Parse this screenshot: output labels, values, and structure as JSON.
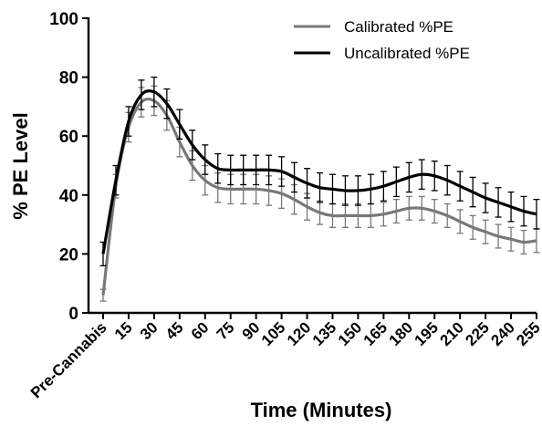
{
  "chart_data": {
    "type": "line",
    "title": "",
    "xlabel": "Time (Minutes)",
    "ylabel": "% PE Level",
    "ylim": [
      0,
      100
    ],
    "yticks": [
      0,
      20,
      40,
      60,
      80,
      100
    ],
    "categories": [
      "Pre-Cannabis",
      "15",
      "30",
      "45",
      "60",
      "75",
      "90",
      "105",
      "120",
      "135",
      "150",
      "165",
      "180",
      "195",
      "210",
      "225",
      "240",
      "255"
    ],
    "x": [
      0,
      7.5,
      15,
      22.5,
      30,
      37.5,
      45,
      52.5,
      60,
      67.5,
      75,
      82.5,
      90,
      97.5,
      105,
      112.5,
      120,
      127.5,
      135,
      142.5,
      150,
      157.5,
      165,
      172.5,
      180,
      187.5,
      195,
      202.5,
      210,
      217.5,
      225,
      232.5,
      240,
      247.5,
      255
    ],
    "grid": false,
    "legend_position": "top-right",
    "series": [
      {
        "name": "Uncalibrated %PE",
        "color": "#000000",
        "values": [
          20,
          45,
          65,
          74,
          75,
          71,
          64,
          57,
          52,
          49,
          48.5,
          48.5,
          48.5,
          48.5,
          48,
          46,
          44,
          42.5,
          42,
          41.5,
          41.5,
          42,
          43,
          44.5,
          46,
          47,
          46.5,
          45,
          43,
          41,
          39,
          37.5,
          36,
          34.5,
          33.5
        ],
        "error": [
          4,
          5,
          5,
          5,
          5,
          5,
          5,
          5,
          5,
          5,
          5,
          5,
          5,
          5,
          5,
          5,
          5,
          5,
          5,
          5,
          5,
          5,
          5,
          5,
          5,
          5,
          5,
          5,
          5,
          5,
          5,
          5,
          5,
          5,
          5
        ]
      },
      {
        "name": "Calibrated %PE",
        "color": "#787878",
        "values": [
          6,
          43,
          63,
          71.5,
          72,
          67,
          58,
          50,
          45,
          42.5,
          42,
          42,
          42,
          41.5,
          40.5,
          38.5,
          36,
          34,
          33,
          33,
          33,
          33,
          33.5,
          34.5,
          35.5,
          35.5,
          34.5,
          33,
          31,
          29,
          27.5,
          26,
          25,
          24,
          24.5
        ],
        "error": [
          2,
          4,
          5,
          5,
          5,
          5,
          5,
          5,
          5,
          5,
          5,
          5,
          5,
          5,
          5,
          5,
          4.5,
          4,
          4,
          4,
          4,
          4,
          4,
          4,
          4,
          4,
          4,
          4,
          4,
          4,
          4,
          4,
          4,
          4,
          4
        ]
      }
    ]
  }
}
